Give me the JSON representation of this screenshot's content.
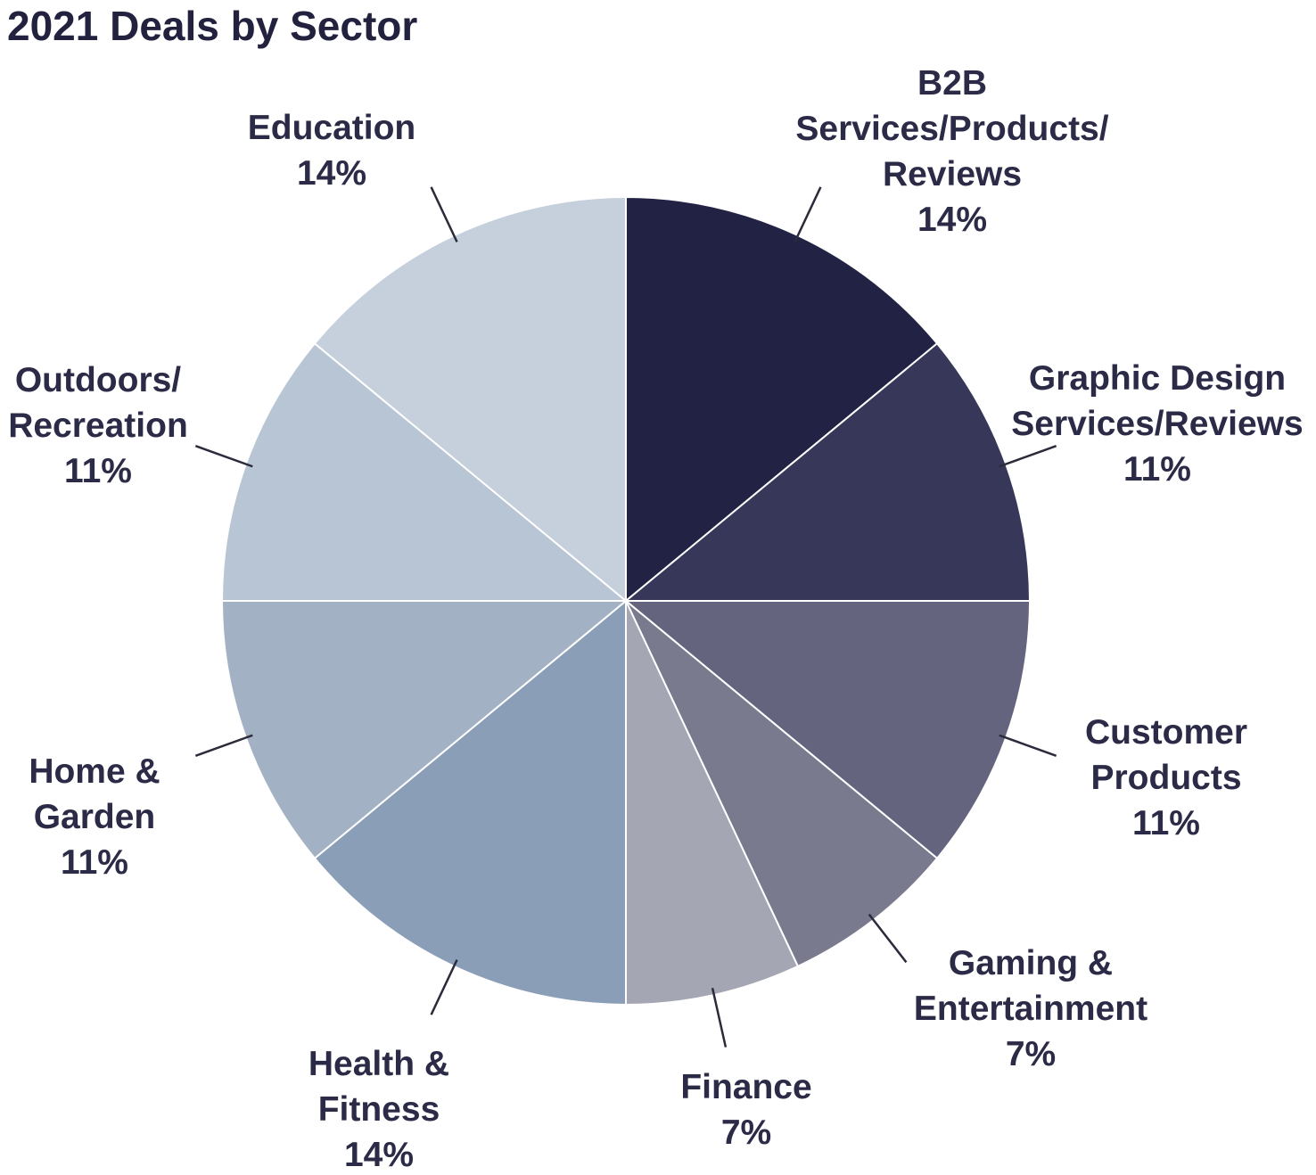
{
  "chart_data": {
    "type": "pie",
    "title": "2021 Deals by Sector",
    "start_angle": "12 o'clock",
    "direction": "clockwise",
    "slices": [
      {
        "name": "B2B Services/Products/ Reviews",
        "label_lines": [
          "B2B",
          "Services/Products/",
          "Reviews"
        ],
        "value": 14,
        "value_label": "14%",
        "color": "#222245"
      },
      {
        "name": "Graphic Design Services/Reviews",
        "label_lines": [
          "Graphic Design",
          "Services/Reviews"
        ],
        "value": 11,
        "value_label": "11%",
        "color": "#373759"
      },
      {
        "name": "Customer Products",
        "label_lines": [
          "Customer",
          "Products"
        ],
        "value": 11,
        "value_label": "11%",
        "color": "#65647f"
      },
      {
        "name": "Gaming & Entertainment",
        "label_lines": [
          "Gaming &",
          "Entertainment"
        ],
        "value": 7,
        "value_label": "7%",
        "color": "#7a7a8f"
      },
      {
        "name": "Finance",
        "label_lines": [
          "Finance"
        ],
        "value": 7,
        "value_label": "7%",
        "color": "#a4a6b4"
      },
      {
        "name": "Health & Fitness",
        "label_lines": [
          "Health &",
          "Fitness"
        ],
        "value": 14,
        "value_label": "14%",
        "color": "#8a9fb7"
      },
      {
        "name": "Home & Garden",
        "label_lines": [
          "Home &",
          "Garden"
        ],
        "value": 11,
        "value_label": "11%",
        "color": "#a2b2c4"
      },
      {
        "name": "Outdoors/ Recreation",
        "label_lines": [
          "Outdoors/",
          "Recreation"
        ],
        "value": 11,
        "value_label": "11%",
        "color": "#b8c5d4"
      },
      {
        "name": "Education",
        "label_lines": [
          "Education"
        ],
        "value": 14,
        "value_label": "14%",
        "color": "#c5d0dc"
      }
    ]
  }
}
